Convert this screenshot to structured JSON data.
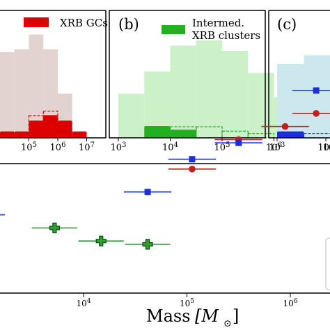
{
  "colors": {
    "panel_a_fill": "#e3d3d0",
    "panel_a_strong": "#dd0000",
    "panel_b_fill": "#ccf0c8",
    "panel_b_strong": "#22b022",
    "panel_c_fill": "#cde7ef",
    "panel_c_strong": "#1a2fd6",
    "red_series": "#c41e1e",
    "blue_series": "#1a2fd6",
    "green_series": "#2ea02e"
  },
  "chart_data": [
    {
      "type": "bar",
      "panel_label": "",
      "legend": [
        "XRB GCs"
      ],
      "x_scale": "log",
      "x_ticks": [
        "10^5",
        "10^6",
        "10^7"
      ],
      "background_hist": {
        "bin_edges_log10": [
          4.0,
          4.5,
          5.0,
          5.5,
          6.0,
          6.5
        ],
        "heights": [
          116,
          120,
          140,
          120,
          60
        ]
      },
      "filled_hist": {
        "bin_edges_log10": [
          4.0,
          4.5,
          5.0,
          5.5,
          6.0,
          6.5,
          7.0
        ],
        "heights": [
          2,
          2,
          8,
          11,
          8,
          2,
          2
        ]
      },
      "dashed_hist": {
        "bin_edges_log10": [
          5.0,
          5.5,
          6.0
        ],
        "heights": [
          10,
          12
        ]
      }
    },
    {
      "type": "bar",
      "panel_label": "(b)",
      "legend": [
        "Intermed.",
        "XRB clusters"
      ],
      "x_scale": "log",
      "x_ticks": [
        "10^3",
        "10^4",
        "10^5",
        "10^6",
        "10^7"
      ],
      "background_hist": {
        "bin_edges_log10": [
          3.0,
          3.5,
          4.0,
          4.5,
          5.0,
          5.5,
          6.0,
          6.5
        ],
        "heights": [
          60,
          90,
          125,
          132,
          118,
          88,
          55
        ]
      },
      "filled_hist": {
        "bin_edges_log10": [
          3.5,
          4.0,
          4.5
        ],
        "heights": [
          5,
          3
        ]
      },
      "dashed_hist": {
        "bin_edges_log10": [
          4.0,
          4.5,
          5.0,
          5.5,
          6.0
        ],
        "heights": [
          5,
          5,
          3,
          2
        ]
      }
    },
    {
      "type": "bar",
      "panel_label": "(c)",
      "legend": [],
      "x_scale": "log",
      "x_ticks": [
        "10^3",
        "10^4"
      ],
      "background_hist": {
        "bin_edges_log10": [
          3.0,
          3.5,
          4.0,
          4.5
        ],
        "heights": [
          100,
          112,
          112
        ]
      },
      "filled_hist": {
        "bin_edges_log10": [
          3.0,
          3.5
        ],
        "heights": [
          2
        ]
      },
      "dashed_hist": {
        "bin_edges_log10": [
          3.5,
          4.0,
          4.5
        ],
        "heights": [
          2,
          32
        ]
      }
    },
    {
      "type": "scatter",
      "xlabel": "Mass",
      "xlabel_unit": "[M",
      "xlabel_unit_sub": "⊙",
      "xlabel_unit_close": "]",
      "x_scale": "log",
      "x_ticks": [
        "10^4",
        "10^5",
        "10^6"
      ],
      "series": [
        {
          "marker": "circle",
          "color_key": "red_series",
          "points": [
            {
              "x": 5.05,
              "xerr": 0.23,
              "y": 0.76
            },
            {
              "x": 5.5,
              "xerr": 0.23,
              "y": 0.85
            },
            {
              "x": 5.95,
              "xerr": 0.23,
              "y": 0.89
            },
            {
              "x": 6.25,
              "xerr": 0.23,
              "y": 0.93
            }
          ]
        },
        {
          "marker": "square",
          "color_key": "blue_series",
          "points": [
            {
              "x": 3.1,
              "xerr": 0.14,
              "y": 0.62
            },
            {
              "x": 4.62,
              "xerr": 0.23,
              "y": 0.69
            },
            {
              "x": 5.05,
              "xerr": 0.23,
              "y": 0.79
            },
            {
              "x": 5.5,
              "xerr": 0.23,
              "y": 0.84
            },
            {
              "x": 6.25,
              "xerr": 0.23,
              "y": 1.0
            }
          ]
        },
        {
          "marker": "plus",
          "color_key": "green_series",
          "points": [
            {
              "x": 3.72,
              "xerr": 0.22,
              "y": 0.58
            },
            {
              "x": 4.17,
              "xerr": 0.22,
              "y": 0.54
            },
            {
              "x": 4.62,
              "xerr": 0.22,
              "y": 0.53
            }
          ]
        }
      ]
    }
  ]
}
